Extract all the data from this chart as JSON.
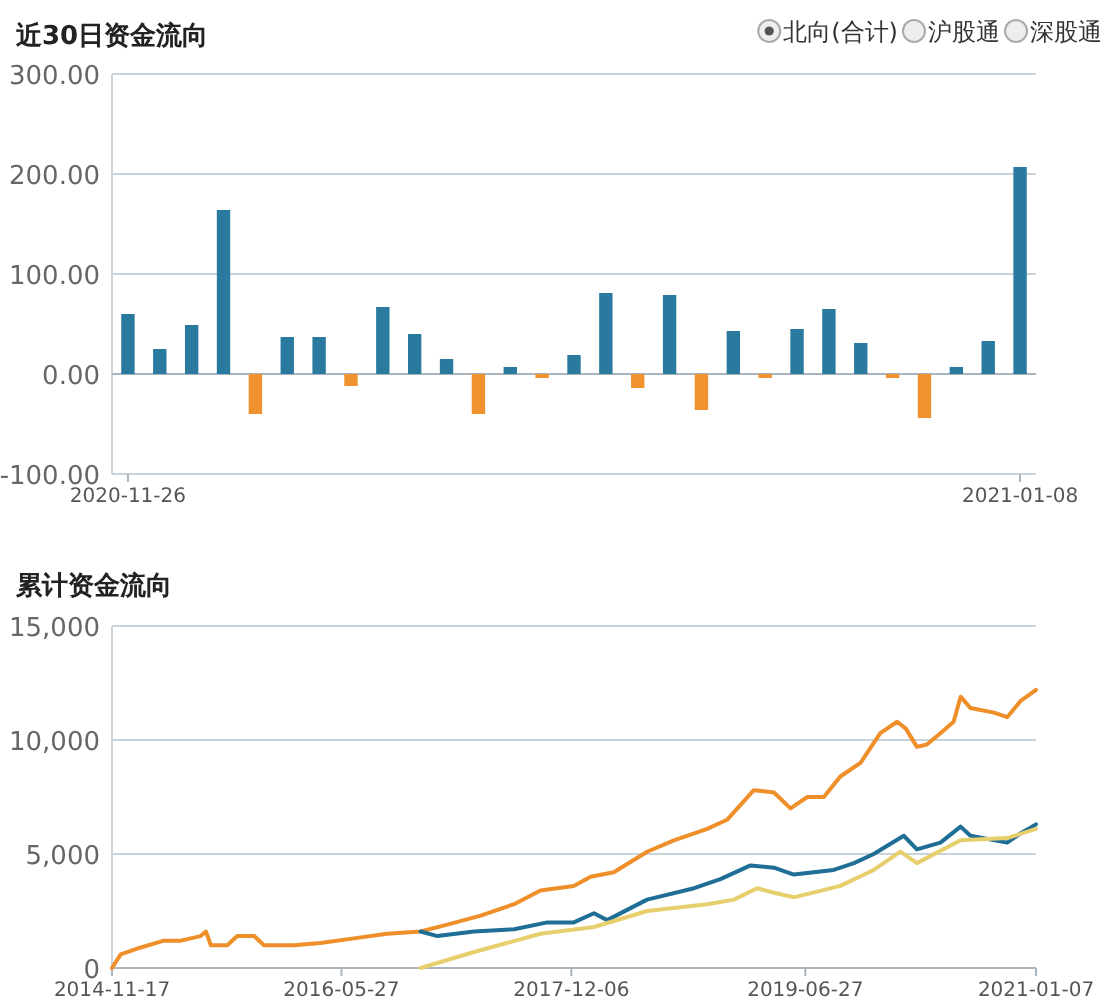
{
  "chart_data": [
    {
      "type": "bar",
      "title": "近30日资金流向",
      "categories": [
        "2020-11-26",
        null,
        null,
        null,
        null,
        null,
        null,
        null,
        null,
        null,
        null,
        null,
        null,
        null,
        null,
        null,
        null,
        null,
        null,
        null,
        null,
        null,
        null,
        null,
        null,
        null,
        null,
        null,
        "2021-01-08"
      ],
      "values": [
        60,
        25,
        49,
        164,
        -40,
        37,
        37,
        -12,
        67,
        40,
        15,
        -40,
        7,
        -4,
        19,
        81,
        -14,
        79,
        -36,
        43,
        -4,
        45,
        65,
        31,
        -4,
        -44,
        7,
        33,
        207
      ],
      "colors": [
        "#2a7aa0",
        "#2a7aa0",
        "#2a7aa0",
        "#2a7aa0",
        "#f0922e",
        "#2a7aa0",
        "#2a7aa0",
        "#f0922e",
        "#2a7aa0",
        "#2a7aa0",
        "#2a7aa0",
        "#f0922e",
        "#2a7aa0",
        "#f0922e",
        "#2a7aa0",
        "#2a7aa0",
        "#f0922e",
        "#2a7aa0",
        "#f0922e",
        "#2a7aa0",
        "#f0922e",
        "#2a7aa0",
        "#2a7aa0",
        "#2a7aa0",
        "#f0922e",
        "#f0922e",
        "#2a7aa0",
        "#2a7aa0",
        "#2a7aa0"
      ],
      "ylim": [
        -100,
        300
      ],
      "yticks": [
        {
          "value": -100,
          "label": "-100.00"
        },
        {
          "value": 0,
          "label": "0.00"
        },
        {
          "value": 100,
          "label": "100.00"
        },
        {
          "value": 200,
          "label": "200.00"
        },
        {
          "value": 300,
          "label": "300.00"
        }
      ],
      "grid": "y",
      "annotations": [
        "北向(合计)",
        "沪股通",
        "深股通"
      ]
    },
    {
      "type": "line",
      "title": "累计资金流向",
      "xlim": [
        "2014-11-17",
        "2021-01-07"
      ],
      "xticks": [
        "2014-11-17",
        "2016-05-27",
        "2017-12-06",
        "2019-06-27",
        "2021-01-07"
      ],
      "ylim": [
        0,
        15000
      ],
      "yticks": [
        0,
        {
          "value": 5000,
          "label": "5,000"
        },
        {
          "value": 10000,
          "label": "10,000"
        },
        {
          "value": 15000,
          "label": "15,000"
        }
      ],
      "grid": "y",
      "series": [
        {
          "color": "#ee8f2a",
          "x": [
            "2014-11-17",
            "2014-12-08",
            "2015-01-26",
            "2015-03-23",
            "2015-05-03",
            "2015-06-20",
            "2015-07-03",
            "2015-07-15",
            "2015-08-24",
            "2015-09-17",
            "2015-10-28",
            "2015-11-21",
            "2016-02-02",
            "2016-04-06",
            "2016-06-26",
            "2016-09-15",
            "2016-12-05",
            "2017-02-08",
            "2017-04-30",
            "2017-07-20",
            "2017-09-22",
            "2017-12-12",
            "2018-01-22",
            "2018-03-19",
            "2018-06-08",
            "2018-08-12",
            "2018-11-01",
            "2018-12-19",
            "2019-02-22",
            "2019-04-12",
            "2019-05-22",
            "2019-07-02",
            "2019-08-11",
            "2019-09-20",
            "2019-11-08",
            "2019-12-26",
            "2020-02-05",
            "2020-02-26",
            "2020-03-24",
            "2020-04-17",
            "2020-05-20",
            "2020-06-21",
            "2020-07-08",
            "2020-08-01",
            "2020-09-27",
            "2020-10-29",
            "2020-11-30",
            "2021-01-07"
          ],
          "values": [
            0,
            600,
            900,
            1200,
            1200,
            1400,
            1600,
            1000,
            1000,
            1400,
            1400,
            1000,
            1000,
            1100,
            1300,
            1500,
            1600,
            1900,
            2300,
            2800,
            3400,
            3600,
            4000,
            4200,
            5100,
            5600,
            6100,
            6500,
            7800,
            7700,
            7000,
            7500,
            7500,
            8400,
            9000,
            10300,
            10800,
            10500,
            9700,
            9800,
            10300,
            10800,
            11900,
            11400,
            11200,
            11000,
            11700,
            12200
          ]
        },
        {
          "color": "#1f6e96",
          "x": [
            "2016-12-05",
            "2017-01-15",
            "2017-04-14",
            "2017-07-20",
            "2017-10-09",
            "2017-12-12",
            "2018-01-30",
            "2018-03-03",
            "2018-06-08",
            "2018-09-30",
            "2018-12-03",
            "2019-02-14",
            "2019-04-12",
            "2019-05-30",
            "2019-09-04",
            "2019-10-23",
            "2019-12-10",
            "2020-02-21",
            "2020-03-24",
            "2020-05-20",
            "2020-07-08",
            "2020-08-01",
            "2020-10-29",
            "2020-11-30",
            "2021-01-07"
          ],
          "values": [
            1600,
            1400,
            1600,
            1700,
            2000,
            2000,
            2400,
            2100,
            3000,
            3500,
            3900,
            4500,
            4400,
            4100,
            4300,
            4600,
            5000,
            5800,
            5200,
            5500,
            6200,
            5800,
            5500,
            5900,
            6300
          ]
        },
        {
          "color": "#e6cf6c",
          "x": [
            "2016-12-05",
            "2017-04-14",
            "2017-09-22",
            "2018-01-30",
            "2018-06-08",
            "2018-11-01",
            "2019-01-05",
            "2019-03-02",
            "2019-04-12",
            "2019-05-30",
            "2019-09-20",
            "2019-12-10",
            "2020-02-13",
            "2020-03-24",
            "2020-07-08",
            "2020-10-29",
            "2021-01-07"
          ],
          "values": [
            0,
            700,
            1500,
            1800,
            2500,
            2800,
            3000,
            3500,
            3300,
            3100,
            3600,
            4300,
            5100,
            4600,
            5600,
            5700,
            6100
          ]
        }
      ]
    }
  ]
}
